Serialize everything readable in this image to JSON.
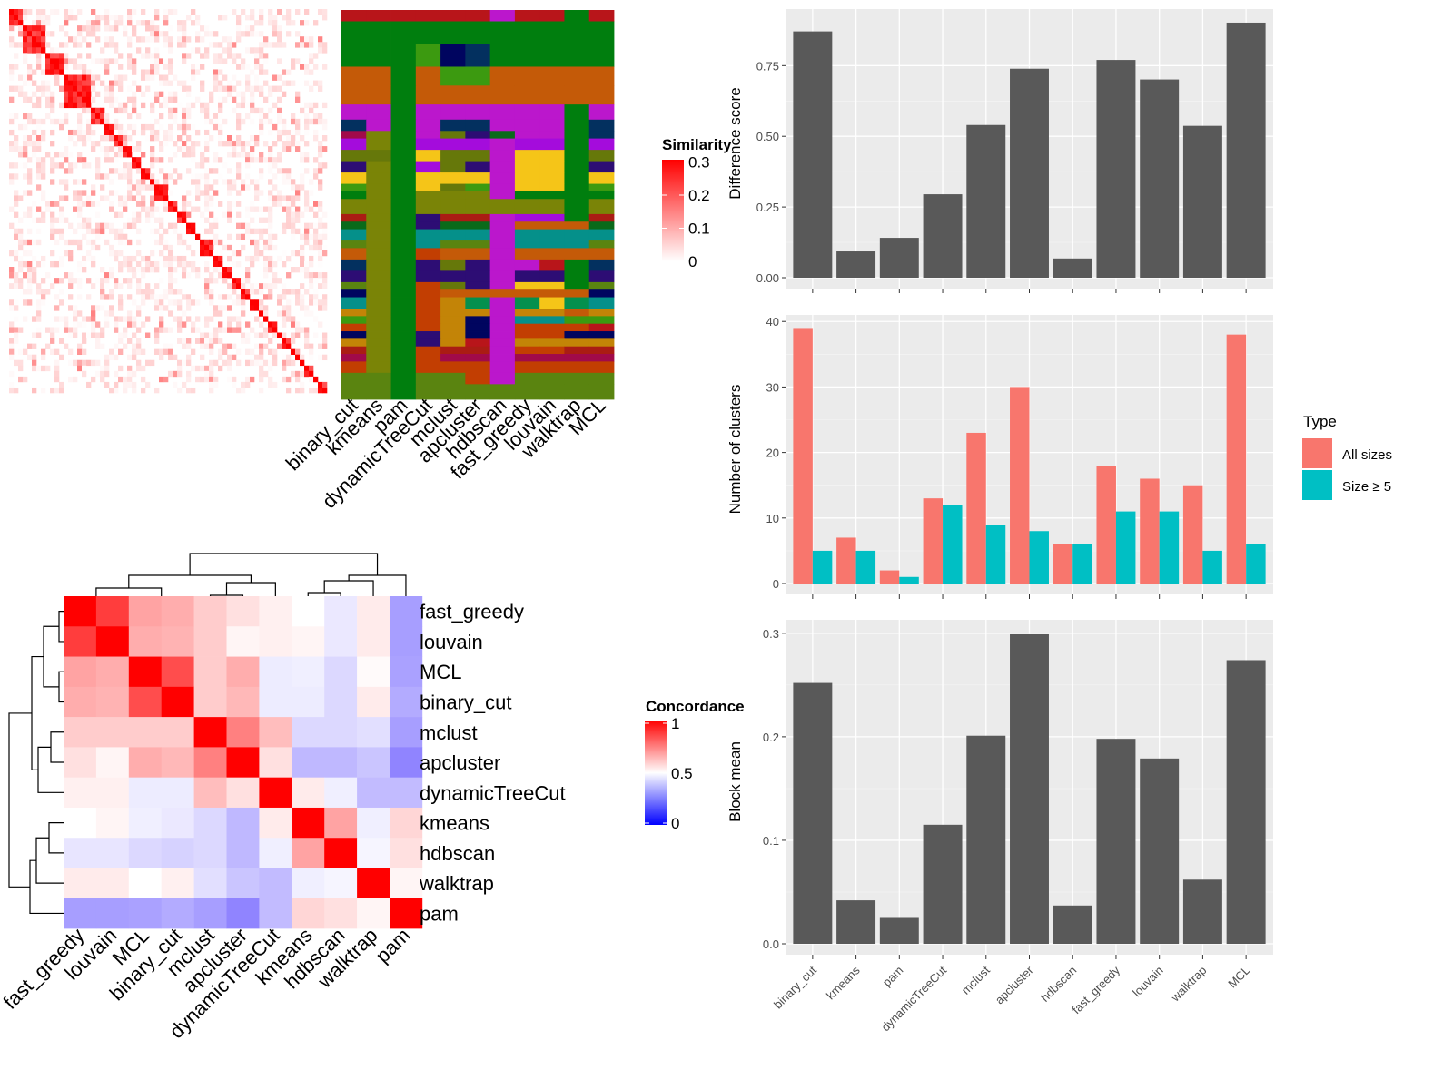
{
  "methods_order_bars": [
    "binary_cut",
    "kmeans",
    "pam",
    "dynamicTreeCut",
    "mclust",
    "apcluster",
    "hdbscan",
    "fast_greedy",
    "louvain",
    "walktrap",
    "MCL"
  ],
  "chart_data": [
    {
      "id": "similarity-heatmap",
      "type": "heatmap",
      "title": "",
      "legend_title": "Similarity",
      "legend_ticks": [
        "0",
        "0.1",
        "0.2",
        "0.3"
      ],
      "color_range": [
        0,
        0.3
      ],
      "colors": {
        "low": "#ffffff",
        "high": "#ff0000"
      },
      "note": "Term similarity matrix with diagonal blocks of high similarity"
    },
    {
      "id": "cluster-label-matrix",
      "type": "heatmap",
      "columns": [
        "binary_cut",
        "kmeans",
        "pam",
        "dynamicTreeCut",
        "mclust",
        "apcluster",
        "hdbscan",
        "fast_greedy",
        "louvain",
        "walktrap",
        "MCL"
      ],
      "palette": [
        "#b8151a",
        "#007e0e",
        "#c45a08",
        "#bb17cc",
        "#7a8407",
        "#03305f",
        "#f5c518",
        "#a40cdc",
        "#5a8410",
        "#2d0d74",
        "#05908a",
        "#c23e02",
        "#c38407",
        "#00055f",
        "#a10a4a",
        "#3c9a10",
        "#04904e"
      ]
    },
    {
      "id": "concordance-heatmap",
      "type": "heatmap",
      "legend_title": "Concordance",
      "legend_ticks": [
        "0",
        "0.5",
        "1"
      ],
      "color_range": [
        0,
        1
      ],
      "colors": {
        "low": "#0000ff",
        "mid": "#ffffff",
        "high": "#ff0000"
      },
      "rows": [
        "fast_greedy",
        "louvain",
        "MCL",
        "binary_cut",
        "mclust",
        "apcluster",
        "dynamicTreeCut",
        "kmeans",
        "hdbscan",
        "walktrap",
        "pam"
      ],
      "columns": [
        "fast_greedy",
        "louvain",
        "MCL",
        "binary_cut",
        "mclust",
        "apcluster",
        "dynamicTreeCut",
        "kmeans",
        "hdbscan",
        "walktrap",
        "pam"
      ],
      "values": [
        [
          1.0,
          0.88,
          0.68,
          0.66,
          0.6,
          0.56,
          0.53,
          0.5,
          0.43,
          0.54,
          0.2
        ],
        [
          0.88,
          1.0,
          0.66,
          0.65,
          0.6,
          0.52,
          0.53,
          0.52,
          0.43,
          0.54,
          0.2
        ],
        [
          0.68,
          0.66,
          1.0,
          0.85,
          0.6,
          0.66,
          0.44,
          0.45,
          0.38,
          0.51,
          0.21
        ],
        [
          0.66,
          0.65,
          0.85,
          1.0,
          0.6,
          0.64,
          0.44,
          0.44,
          0.38,
          0.54,
          0.24
        ],
        [
          0.6,
          0.6,
          0.6,
          0.6,
          1.0,
          0.75,
          0.63,
          0.38,
          0.38,
          0.4,
          0.2
        ],
        [
          0.56,
          0.52,
          0.66,
          0.64,
          0.75,
          1.0,
          0.56,
          0.28,
          0.28,
          0.32,
          0.12
        ],
        [
          0.53,
          0.53,
          0.44,
          0.44,
          0.63,
          0.56,
          1.0,
          0.54,
          0.45,
          0.29,
          0.29
        ],
        [
          0.5,
          0.52,
          0.45,
          0.43,
          0.38,
          0.28,
          0.54,
          1.0,
          0.68,
          0.45,
          0.58
        ],
        [
          0.42,
          0.42,
          0.38,
          0.36,
          0.38,
          0.28,
          0.45,
          0.68,
          1.0,
          0.47,
          0.56
        ],
        [
          0.54,
          0.54,
          0.5,
          0.53,
          0.4,
          0.32,
          0.29,
          0.45,
          0.47,
          1.0,
          0.52
        ],
        [
          0.2,
          0.2,
          0.21,
          0.24,
          0.2,
          0.12,
          0.29,
          0.58,
          0.56,
          0.52,
          1.0
        ]
      ]
    },
    {
      "id": "difference-score-bar",
      "type": "bar",
      "categories": [
        "binary_cut",
        "kmeans",
        "pam",
        "dynamicTreeCut",
        "mclust",
        "apcluster",
        "hdbscan",
        "fast_greedy",
        "louvain",
        "walktrap",
        "MCL"
      ],
      "values": [
        0.871,
        0.093,
        0.141,
        0.295,
        0.54,
        0.739,
        0.068,
        0.77,
        0.701,
        0.537,
        0.902
      ],
      "ylabel": "Difference score",
      "xlabel": "",
      "yticks": [
        "0.00",
        "0.25",
        "0.50",
        "0.75"
      ],
      "ylim": [
        0,
        0.95
      ],
      "bar_color": "#595959",
      "grid": true
    },
    {
      "id": "number-of-clusters-bar",
      "type": "bar",
      "categories": [
        "binary_cut",
        "kmeans",
        "pam",
        "dynamicTreeCut",
        "mclust",
        "apcluster",
        "hdbscan",
        "fast_greedy",
        "louvain",
        "walktrap",
        "MCL"
      ],
      "series": [
        {
          "name": "All sizes",
          "color": "#f8766d",
          "values": [
            39,
            7,
            2,
            13,
            23,
            30,
            6,
            18,
            16,
            15,
            38
          ]
        },
        {
          "name": "Size ≥ 5",
          "color": "#00bfc4",
          "values": [
            5,
            5,
            1,
            12,
            9,
            8,
            6,
            11,
            11,
            5,
            6
          ]
        }
      ],
      "ylabel": "Number of clusters",
      "yticks": [
        "0",
        "10",
        "20",
        "30",
        "40"
      ],
      "ylim": [
        0,
        41
      ],
      "legend_title": "Type",
      "legend_position": "right",
      "grid": true
    },
    {
      "id": "block-mean-bar",
      "type": "bar",
      "categories": [
        "binary_cut",
        "kmeans",
        "pam",
        "dynamicTreeCut",
        "mclust",
        "apcluster",
        "hdbscan",
        "fast_greedy",
        "louvain",
        "walktrap",
        "MCL"
      ],
      "values": [
        0.252,
        0.042,
        0.025,
        0.115,
        0.201,
        0.299,
        0.037,
        0.198,
        0.179,
        0.062,
        0.274
      ],
      "ylabel": "Block mean",
      "yticks": [
        "0.0",
        "0.1",
        "0.2",
        "0.3"
      ],
      "ylim": [
        0,
        0.313
      ],
      "bar_color": "#595959",
      "grid": true
    }
  ],
  "legends": {
    "similarity_title": "Similarity",
    "concordance_title": "Concordance",
    "type_title": "Type",
    "type_all": "All sizes",
    "type_size5": "Size ≥ 5"
  }
}
